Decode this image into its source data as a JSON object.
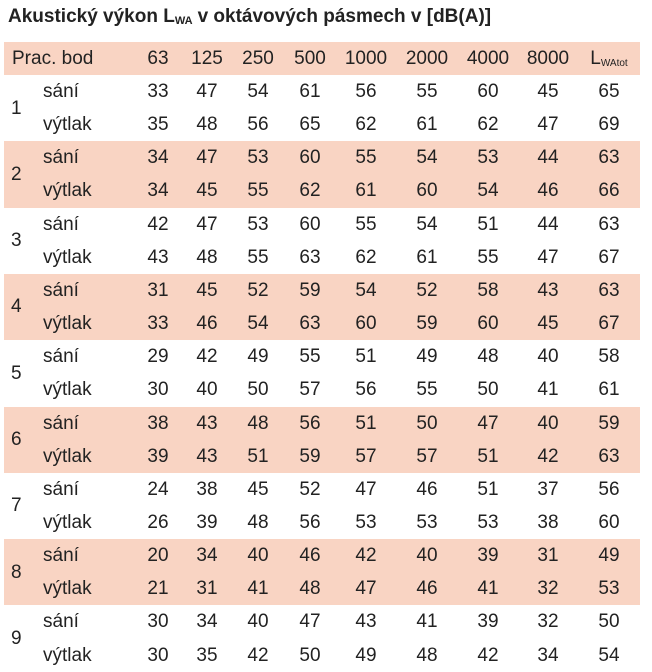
{
  "title": {
    "main": "Akustický výkon L",
    "sub": "WA",
    "rest": "v oktávových pásmech v [dB(A)]"
  },
  "header": {
    "label": "Prac. bod",
    "bands": [
      63,
      125,
      250,
      500,
      1000,
      2000,
      4000,
      8000
    ],
    "total": {
      "main": "L",
      "sub": "WAtot"
    }
  },
  "groups": [
    {
      "point": 1,
      "rows": [
        {
          "label": "sání",
          "values": [
            33,
            47,
            54,
            61,
            56,
            55,
            60,
            45,
            65
          ]
        },
        {
          "label": "výtlak",
          "values": [
            35,
            48,
            56,
            65,
            62,
            61,
            62,
            47,
            69
          ]
        }
      ]
    },
    {
      "point": 2,
      "rows": [
        {
          "label": "sání",
          "values": [
            34,
            47,
            53,
            60,
            55,
            54,
            53,
            44,
            63
          ]
        },
        {
          "label": "výtlak",
          "values": [
            34,
            45,
            55,
            62,
            61,
            60,
            54,
            46,
            66
          ]
        }
      ]
    },
    {
      "point": 3,
      "rows": [
        {
          "label": "sání",
          "values": [
            42,
            47,
            53,
            60,
            55,
            54,
            51,
            44,
            63
          ]
        },
        {
          "label": "výtlak",
          "values": [
            43,
            48,
            55,
            63,
            62,
            61,
            55,
            47,
            67
          ]
        }
      ]
    },
    {
      "point": 4,
      "rows": [
        {
          "label": "sání",
          "values": [
            31,
            45,
            52,
            59,
            54,
            52,
            58,
            43,
            63
          ]
        },
        {
          "label": "výtlak",
          "values": [
            33,
            46,
            54,
            63,
            60,
            59,
            60,
            45,
            67
          ]
        }
      ]
    },
    {
      "point": 5,
      "rows": [
        {
          "label": "sání",
          "values": [
            29,
            42,
            49,
            55,
            51,
            49,
            48,
            40,
            58
          ]
        },
        {
          "label": "výtlak",
          "values": [
            30,
            40,
            50,
            57,
            56,
            55,
            50,
            41,
            61
          ]
        }
      ]
    },
    {
      "point": 6,
      "rows": [
        {
          "label": "sání",
          "values": [
            38,
            43,
            48,
            56,
            51,
            50,
            47,
            40,
            59
          ]
        },
        {
          "label": "výtlak",
          "values": [
            39,
            43,
            51,
            59,
            57,
            57,
            51,
            42,
            63
          ]
        }
      ]
    },
    {
      "point": 7,
      "rows": [
        {
          "label": "sání",
          "values": [
            24,
            38,
            45,
            52,
            47,
            46,
            51,
            37,
            56
          ]
        },
        {
          "label": "výtlak",
          "values": [
            26,
            39,
            48,
            56,
            53,
            53,
            53,
            38,
            60
          ]
        }
      ]
    },
    {
      "point": 8,
      "rows": [
        {
          "label": "sání",
          "values": [
            20,
            34,
            40,
            46,
            42,
            40,
            39,
            31,
            49
          ]
        },
        {
          "label": "výtlak",
          "values": [
            21,
            31,
            41,
            48,
            47,
            46,
            41,
            32,
            53
          ]
        }
      ]
    },
    {
      "point": 9,
      "rows": [
        {
          "label": "sání",
          "values": [
            30,
            34,
            40,
            47,
            43,
            41,
            39,
            32,
            50
          ]
        },
        {
          "label": "výtlak",
          "values": [
            30,
            35,
            42,
            50,
            49,
            48,
            42,
            34,
            54
          ]
        }
      ]
    }
  ]
}
